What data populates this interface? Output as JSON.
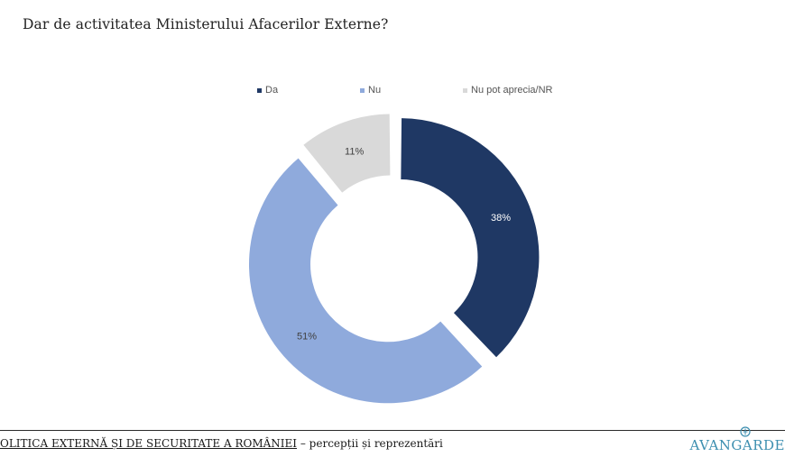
{
  "title": "Dar de activitatea Ministerului Afacerilor Externe?",
  "colors": {
    "da": "#1f3864",
    "nu": "#8faadc",
    "nr": "#d9d9d9",
    "slice_label_dark": "#ffffff",
    "slice_label_light": "#404040",
    "logo": "#3d8fb0"
  },
  "chart_data": {
    "type": "pie",
    "variant": "donut",
    "exploded": true,
    "legend_placement": "top",
    "title": "Dar de activitatea Ministerului Afacerilor Externe?",
    "categories": [
      "Da",
      "Nu",
      "Nu pot aprecia/NR"
    ],
    "values": [
      38,
      51,
      11
    ],
    "labels": [
      "38%",
      "51%",
      "11%"
    ],
    "unit": "%"
  },
  "footer": {
    "title_underlined": "OLITICA EXTERNĂ ȘI DE SECURITATE A ROMÂNIEI",
    "title_rest": " – percepții și reprezentări"
  },
  "logo": {
    "text": "AVANGARDE",
    "icon": "avangarde-logo-icon"
  }
}
